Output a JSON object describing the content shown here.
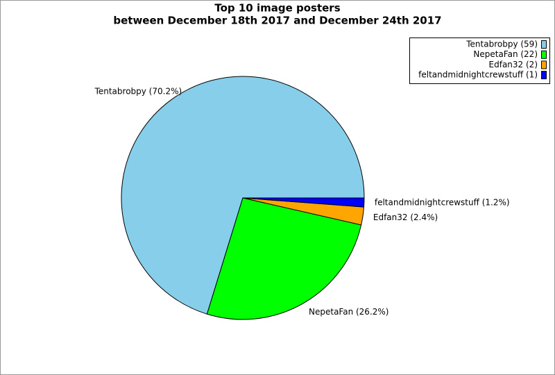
{
  "chart_data": {
    "type": "pie",
    "title": "Top 10 image posters",
    "subtitle": "between December 18th 2017 and December 24th 2017",
    "categories": [
      "Tentabrobpy",
      "NepetaFan",
      "Edfan32",
      "feltandmidnightcrewstuff"
    ],
    "values": [
      59,
      22,
      2,
      1
    ],
    "value_labels": [
      "Tentabrobpy (70.2%)",
      "NepetaFan (26.2%)",
      "Edfan32 (2.4%)",
      "feltandmidnightcrewstuff (1.2%)"
    ],
    "legend_labels": [
      "Tentabrobpy (59)",
      "NepetaFan (22)",
      "Edfan32 (2)",
      "feltandmidnightcrewstuff (1)"
    ],
    "colors": [
      "#87ceeb",
      "#00ff00",
      "#ffa500",
      "#0000ff"
    ],
    "legend": "top-right"
  }
}
